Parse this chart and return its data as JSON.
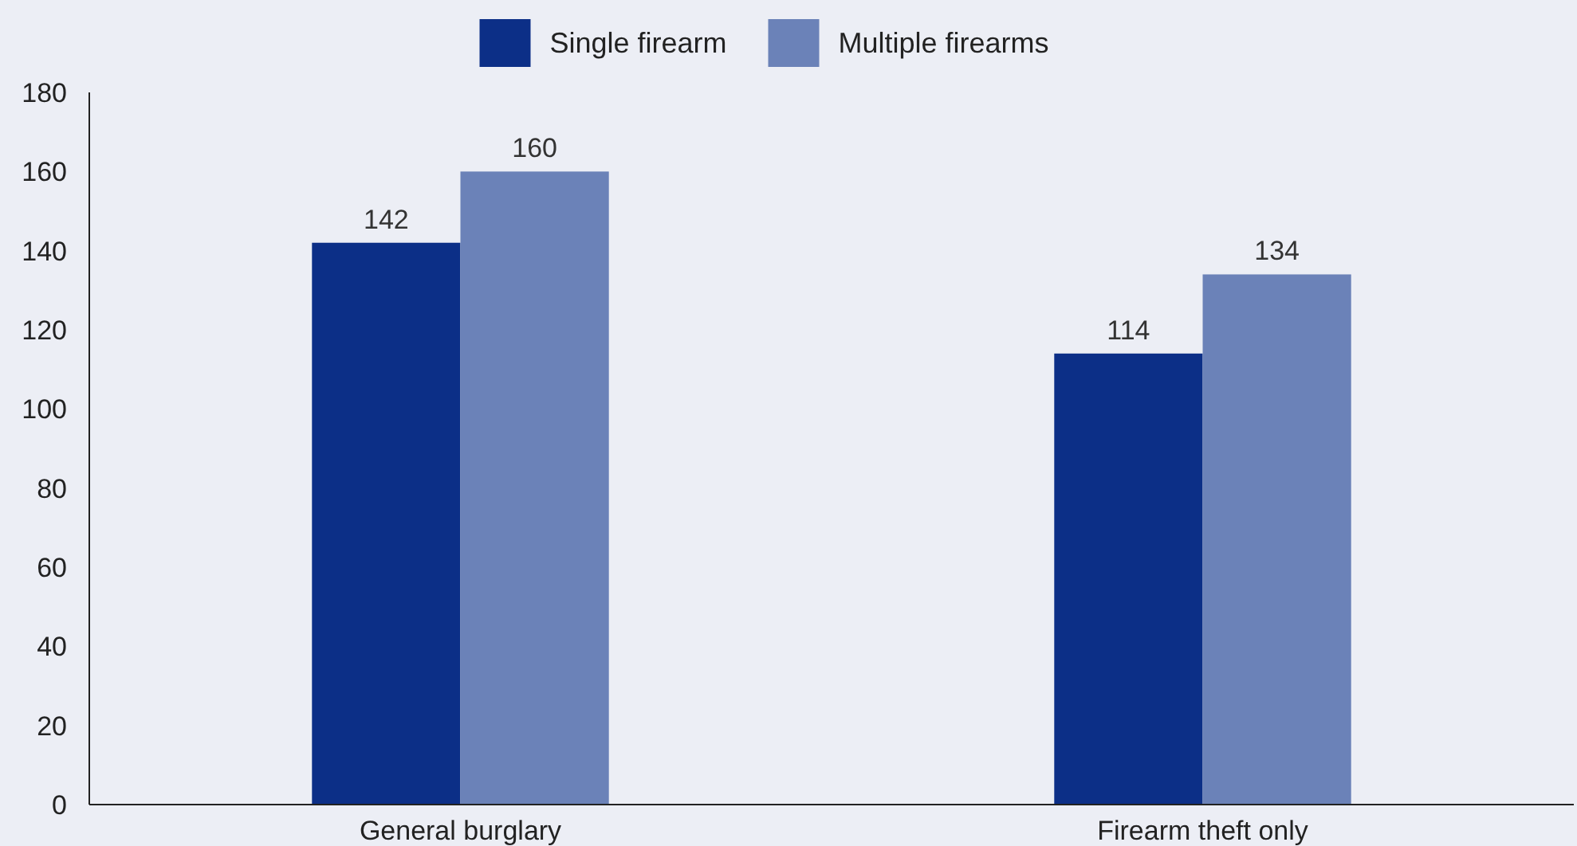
{
  "chart_data": {
    "type": "bar",
    "categories": [
      "General burglary",
      "Firearm theft only"
    ],
    "series": [
      {
        "name": "Single firearm",
        "color": "#0c2f87",
        "values": [
          142,
          114
        ]
      },
      {
        "name": "Multiple firearms",
        "color": "#6b82b8",
        "values": [
          160,
          134
        ]
      }
    ],
    "ylim": [
      0,
      180
    ],
    "yticks": [
      0,
      20,
      40,
      60,
      80,
      100,
      120,
      140,
      160,
      180
    ],
    "data_labels": true,
    "legend": "top",
    "grid": false
  }
}
